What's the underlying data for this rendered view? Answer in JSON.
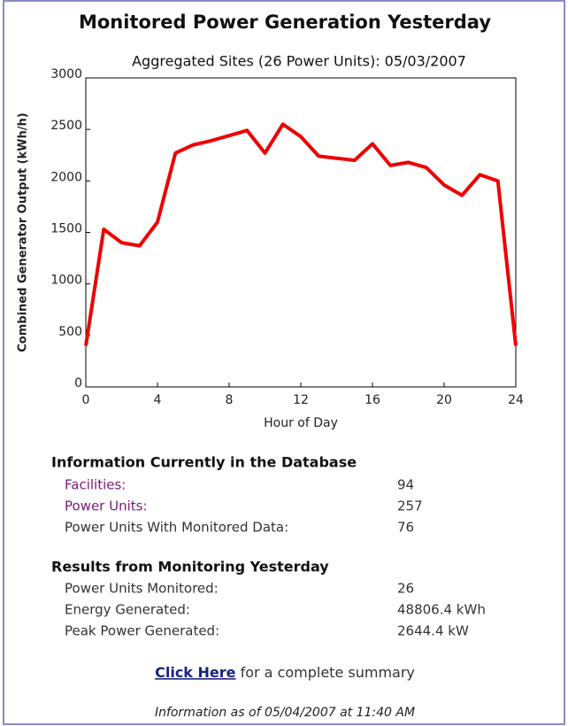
{
  "chart_data": {
    "type": "line",
    "title": "Monitored Power Generation Yesterday",
    "subtitle": "Aggregated Sites (26 Power Units): 05/03/2007",
    "x_label": "Hour of Day",
    "y_label": "Combined Generator Output (kWh/h)",
    "x": [
      0,
      1,
      2,
      3,
      4,
      5,
      6,
      7,
      8,
      9,
      10,
      11,
      12,
      13,
      14,
      15,
      16,
      17,
      18,
      19,
      20,
      21,
      22,
      23,
      24
    ],
    "values": [
      400,
      1530,
      1400,
      1370,
      1600,
      2270,
      2350,
      2390,
      2440,
      2490,
      2270,
      2550,
      2430,
      2240,
      2220,
      2200,
      2360,
      2150,
      2180,
      2130,
      1960,
      1860,
      2060,
      2000,
      400
    ],
    "color": "#ee0000",
    "xlim": [
      0,
      24
    ],
    "xticks": [
      0,
      4,
      8,
      12,
      16,
      20,
      24
    ],
    "ylim": [
      0,
      3000
    ],
    "yticks": [
      0,
      500,
      1000,
      1500,
      2000,
      2500,
      3000
    ]
  },
  "info": {
    "title": "Information Currently in the Database",
    "rows": [
      {
        "label": "Facilities:",
        "value": "94"
      },
      {
        "label": "Power Units:",
        "value": "257"
      },
      {
        "label": "Power Units With Monitored Data:",
        "value": "76"
      }
    ]
  },
  "results": {
    "title": "Results from Monitoring Yesterday",
    "rows": [
      {
        "label": "Power Units Monitored:",
        "value": "26"
      },
      {
        "label": "Energy Generated:",
        "value": "48806.4 kWh"
      },
      {
        "label": "Peak Power Generated:",
        "value": "2644.4 kW"
      }
    ]
  },
  "link": {
    "text": "Click Here",
    "suffix": " for a complete summary"
  },
  "footer": "Information as of 05/04/2007 at 11:40 AM"
}
